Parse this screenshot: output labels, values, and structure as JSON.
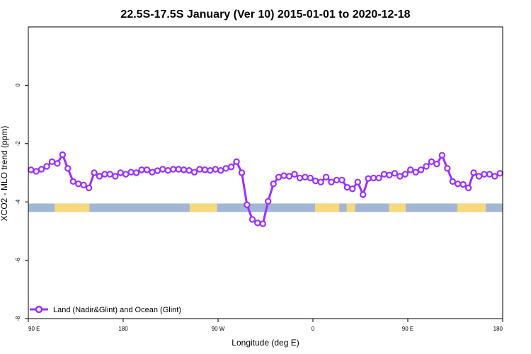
{
  "chart_data": {
    "type": "line",
    "title": "22.5S-17.5S January (Ver 10)   2015-01-01 to 2020-12-18",
    "xlabel": "Longitude (deg E)",
    "ylabel": "XCO2 - MLO trend (ppm)",
    "xlim": [
      90,
      540
    ],
    "ylim": [
      -8,
      2
    ],
    "xticks": [
      {
        "value": 90,
        "label": "90 E"
      },
      {
        "value": 180,
        "label": "180"
      },
      {
        "value": 270,
        "label": "90 W"
      },
      {
        "value": 360,
        "label": "0"
      },
      {
        "value": 450,
        "label": "90 E"
      },
      {
        "value": 540,
        "label": "180"
      }
    ],
    "yticks": [
      {
        "value": 0,
        "label": "0"
      },
      {
        "value": -2,
        "label": "-2"
      },
      {
        "value": -4,
        "label": "-4"
      },
      {
        "value": -6,
        "label": "-6"
      },
      {
        "value": -8,
        "label": "-8"
      }
    ],
    "legend": {
      "position": "bottom-left"
    },
    "series": [
      {
        "name": "Land (Nadir&Glint) and Ocean (Glint)",
        "color": "#9b30ff",
        "x": [
          92.5,
          97.5,
          102.5,
          107.5,
          112.5,
          117.5,
          122.5,
          127.5,
          132.5,
          137.5,
          142.5,
          147.5,
          152.5,
          157.5,
          162.5,
          167.5,
          172.5,
          177.5,
          182.5,
          187.5,
          192.5,
          197.5,
          202.5,
          207.5,
          212.5,
          217.5,
          222.5,
          227.5,
          232.5,
          237.5,
          242.5,
          247.5,
          252.5,
          257.5,
          262.5,
          267.5,
          272.5,
          277.5,
          282.5,
          287.5,
          292.5,
          297.5,
          302.5,
          307.5,
          312.5,
          317.5,
          322.5,
          327.5,
          332.5,
          337.5,
          342.5,
          347.5,
          352.5,
          357.5,
          362.5,
          367.5,
          372.5,
          377.5,
          382.5,
          387.5,
          392.5,
          397.5,
          402.5,
          407.5,
          412.5,
          417.5,
          422.5,
          427.5,
          432.5,
          437.5,
          442.5,
          447.5,
          452.5,
          457.5,
          462.5,
          467.5,
          472.5,
          477.5,
          482.5,
          487.5,
          492.5,
          497.5,
          502.5,
          507.5,
          512.5,
          517.5,
          522.5,
          527.5,
          532.5,
          537.5
        ],
        "values": [
          -2.9,
          -2.95,
          -2.88,
          -2.78,
          -2.62,
          -2.68,
          -2.38,
          -2.85,
          -3.3,
          -3.38,
          -3.42,
          -3.52,
          -3.0,
          -3.12,
          -3.05,
          -3.05,
          -3.12,
          -3.0,
          -3.05,
          -2.98,
          -3.0,
          -2.9,
          -2.9,
          -2.98,
          -2.93,
          -2.88,
          -2.92,
          -2.88,
          -2.88,
          -2.9,
          -2.92,
          -2.98,
          -2.88,
          -2.9,
          -2.92,
          -2.88,
          -2.92,
          -2.85,
          -2.8,
          -2.62,
          -3.0,
          -4.1,
          -4.6,
          -4.72,
          -4.75,
          -3.98,
          -3.38,
          -3.15,
          -3.1,
          -3.12,
          -3.05,
          -3.18,
          -3.15,
          -3.18,
          -3.28,
          -3.32,
          -3.15,
          -3.32,
          -3.25,
          -3.25,
          -3.5,
          -3.55,
          -3.32,
          -3.75,
          -3.2,
          -3.18,
          -3.18,
          -3.05,
          -3.08,
          -3.02,
          -3.12,
          -3.05,
          -2.9,
          -2.98,
          -2.9,
          -2.78,
          -2.62,
          -2.7,
          -2.4,
          -2.85,
          -3.3,
          -3.38,
          -3.4,
          -3.52,
          -3.0,
          -3.12,
          -3.05,
          -3.05,
          -3.12,
          -3.02
        ]
      }
    ],
    "surface_strip": {
      "y_center": -4.2,
      "ocean_color": "#a2b6d6",
      "land_color": "#f7d87c",
      "land_segments": [
        [
          115,
          148
        ],
        [
          243,
          269
        ],
        [
          362,
          385
        ],
        [
          392,
          400
        ],
        [
          432,
          448
        ],
        [
          497,
          524
        ]
      ]
    }
  }
}
